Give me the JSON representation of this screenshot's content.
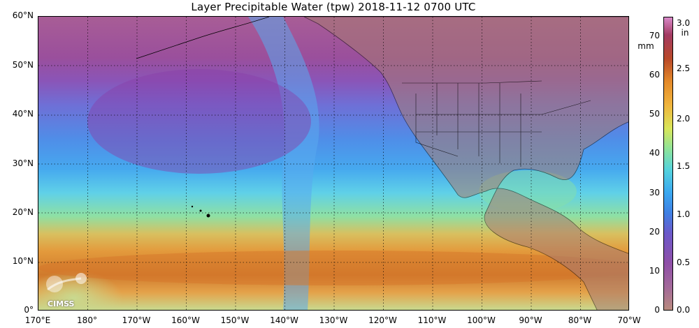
{
  "title": "Layer Precipitable Water (tpw)  2018-11-12 0700 UTC",
  "latitude_labels": [
    "60°N",
    "50°N",
    "40°N",
    "30°N",
    "20°N",
    "10°N",
    "0°"
  ],
  "longitude_labels": [
    "170°E",
    "180°",
    "170°W",
    "160°W",
    "150°W",
    "140°W",
    "130°W",
    "120°W",
    "110°W",
    "100°W",
    "90°W",
    "80°W",
    "70°W"
  ],
  "colorbar": {
    "mm_unit": "mm",
    "in_unit": "in",
    "mm_ticks": [
      "70",
      "60",
      "50",
      "40",
      "30",
      "20",
      "10",
      "0"
    ],
    "in_ticks": [
      "3.0",
      "2.5",
      "2.0",
      "1.5",
      "1.0",
      "0.5",
      "0.0"
    ]
  },
  "logo_text": "CIMSS",
  "colors": {
    "dry": "#b98a7e",
    "low": "#8f4fa8",
    "mid": "#3f7fe3",
    "moist": "#8ee39a",
    "high": "#e48a2a",
    "very_high": "#d889c9"
  }
}
